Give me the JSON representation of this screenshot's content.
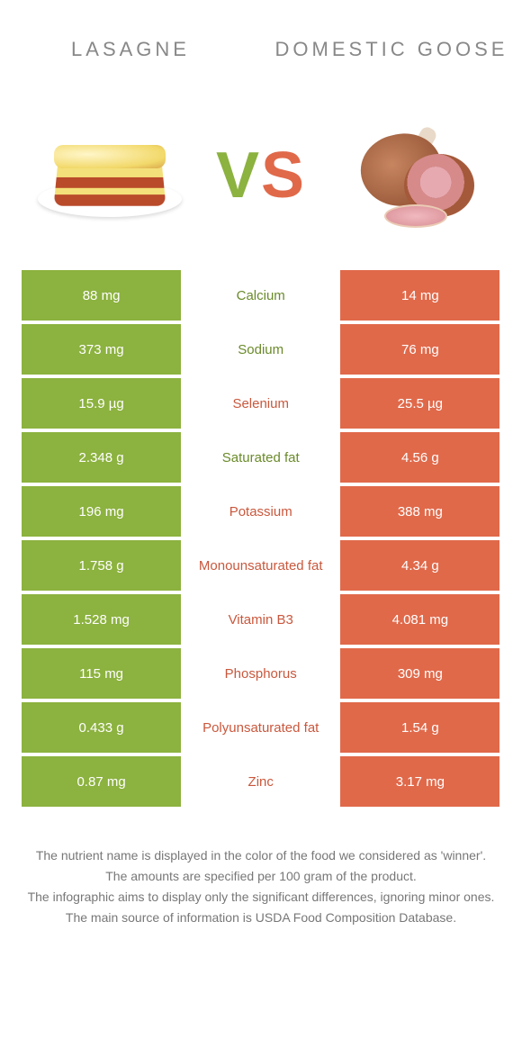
{
  "colors": {
    "green": "#8cb23f",
    "orange": "#e0694a",
    "mid_green_text": "#6a8a2a",
    "mid_orange_text": "#c9583d"
  },
  "header": {
    "left": "Lasagne",
    "right": "Domestic Goose"
  },
  "vs": {
    "v": "V",
    "s": "S"
  },
  "rows": [
    {
      "nutrient": "Calcium",
      "left": "88 mg",
      "right": "14 mg",
      "winner": "left"
    },
    {
      "nutrient": "Sodium",
      "left": "373 mg",
      "right": "76 mg",
      "winner": "left"
    },
    {
      "nutrient": "Selenium",
      "left": "15.9 µg",
      "right": "25.5 µg",
      "winner": "right"
    },
    {
      "nutrient": "Saturated fat",
      "left": "2.348 g",
      "right": "4.56 g",
      "winner": "left"
    },
    {
      "nutrient": "Potassium",
      "left": "196 mg",
      "right": "388 mg",
      "winner": "right"
    },
    {
      "nutrient": "Monounsaturated fat",
      "left": "1.758 g",
      "right": "4.34 g",
      "winner": "right"
    },
    {
      "nutrient": "Vitamin B3",
      "left": "1.528 mg",
      "right": "4.081 mg",
      "winner": "right"
    },
    {
      "nutrient": "Phosphorus",
      "left": "115 mg",
      "right": "309 mg",
      "winner": "right"
    },
    {
      "nutrient": "Polyunsaturated fat",
      "left": "0.433 g",
      "right": "1.54 g",
      "winner": "right"
    },
    {
      "nutrient": "Zinc",
      "left": "0.87 mg",
      "right": "3.17 mg",
      "winner": "right"
    }
  ],
  "footer": {
    "line1": "The nutrient name is displayed in the color of the food we considered as 'winner'.",
    "line2": "The amounts are specified per 100 gram of the product.",
    "line3": "The infographic aims to display only the significant differences, ignoring minor ones.",
    "line4": "The main source of information is USDA Food Composition Database."
  }
}
